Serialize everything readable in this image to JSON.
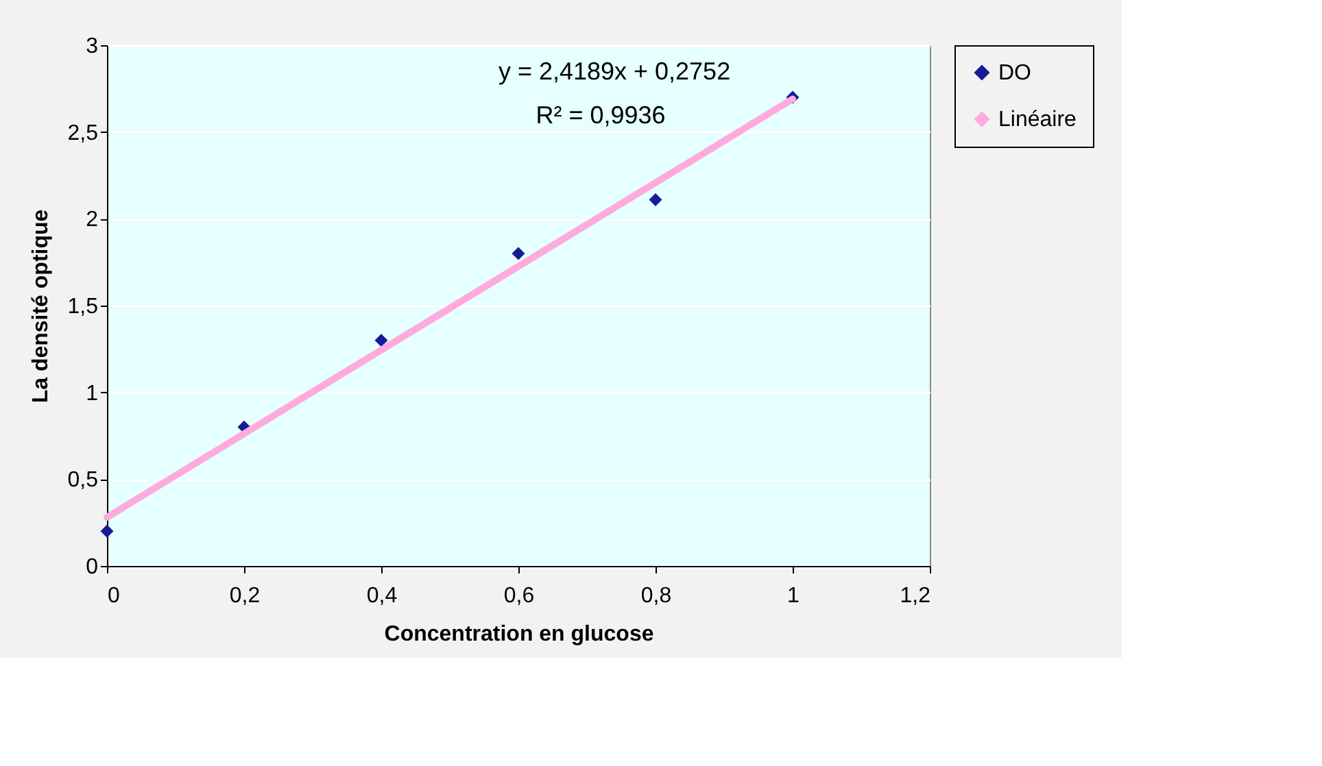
{
  "chart_data": {
    "type": "scatter",
    "xlabel": "Concentration en glucose",
    "ylabel": "La densité optique",
    "series": [
      {
        "name": "DO",
        "color": "#1a1a96",
        "marker": "diamond",
        "x": [
          0,
          0.2,
          0.4,
          0.6,
          0.8,
          1
        ],
        "values": [
          0.2,
          0.8,
          1.3,
          1.8,
          2.11,
          2.7
        ]
      },
      {
        "name": "Linéaire",
        "type": "line",
        "color": "#ffaadd",
        "marker": "none",
        "line_style": "solid",
        "x": [
          0,
          1
        ],
        "values": [
          0.28,
          2.69
        ]
      }
    ],
    "annotations": [
      "y = 2,4189x + 0,2752",
      "R² = 0,9936"
    ],
    "xlim": [
      0,
      1.2
    ],
    "ylim": [
      0,
      3
    ],
    "xticks": [
      0,
      {
        "value": 0.2,
        "label": "0,2"
      },
      {
        "value": 0.4,
        "label": "0,4"
      },
      {
        "value": 0.6,
        "label": "0,6"
      },
      {
        "value": 0.8,
        "label": "0,8"
      },
      1,
      {
        "value": 1.2,
        "label": "1,2"
      }
    ],
    "yticks": [
      0,
      {
        "value": 0.5,
        "label": "0,5"
      },
      1,
      {
        "value": 1.5,
        "label": "1,5"
      },
      2,
      {
        "value": 2.5,
        "label": "2,5"
      },
      3
    ],
    "grid": "y",
    "legend": "right"
  }
}
